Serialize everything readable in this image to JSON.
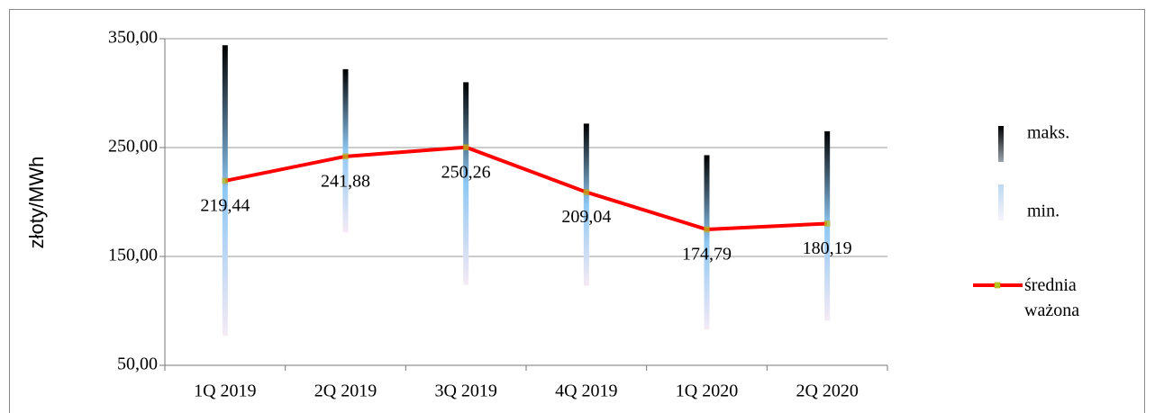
{
  "chart_data": {
    "type": "highlow-line",
    "y_label": "złoty/MWh",
    "categories": [
      "1Q 2019",
      "2Q 2019",
      "3Q 2019",
      "4Q 2019",
      "1Q 2020",
      "2Q 2020"
    ],
    "series": [
      {
        "name": "maks.",
        "color": "#000000",
        "values": [
          344,
          322,
          310,
          272,
          243,
          265
        ]
      },
      {
        "name": "min.",
        "color": "#f5eaf5",
        "values": [
          77,
          172,
          124,
          123,
          83,
          91
        ]
      },
      {
        "name": "średnia ważona",
        "color": "#ff0000",
        "values": [
          219.44,
          241.88,
          250.26,
          209.04,
          174.79,
          180.19
        ],
        "value_labels": [
          "219,44",
          "241,88",
          "250,26",
          "209,04",
          "174,79",
          "180,19"
        ]
      }
    ],
    "ylim": [
      50,
      350
    ],
    "yticks": [
      {
        "value": 50,
        "label": "50,00"
      },
      {
        "value": 150,
        "label": "150,00"
      },
      {
        "value": 250,
        "label": "250,00"
      },
      {
        "value": 350,
        "label": "350,00"
      }
    ],
    "grid": true,
    "legend": "right"
  }
}
